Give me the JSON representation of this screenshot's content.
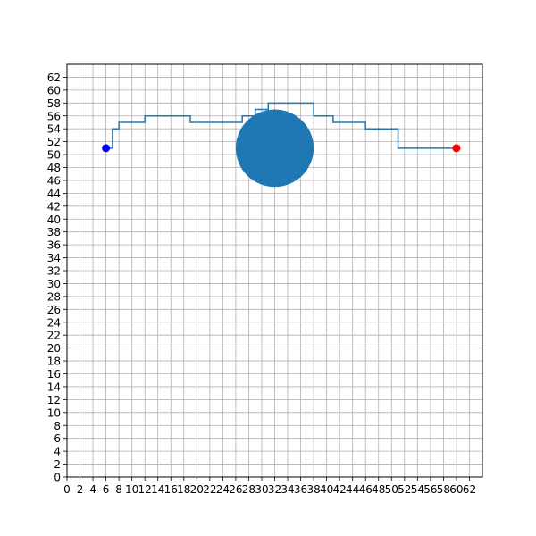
{
  "chart_data": {
    "type": "line",
    "title": "",
    "xlabel": "",
    "ylabel": "",
    "xlim": [
      0,
      64
    ],
    "ylim": [
      0,
      64
    ],
    "grid": true,
    "x_ticks": [
      0,
      2,
      4,
      6,
      8,
      10,
      12,
      14,
      16,
      18,
      20,
      22,
      24,
      26,
      28,
      30,
      32,
      34,
      36,
      38,
      40,
      42,
      44,
      46,
      48,
      50,
      52,
      54,
      56,
      58,
      60,
      62
    ],
    "y_ticks": [
      0,
      2,
      4,
      6,
      8,
      10,
      12,
      14,
      16,
      18,
      20,
      22,
      24,
      26,
      28,
      30,
      32,
      34,
      36,
      38,
      40,
      42,
      44,
      46,
      48,
      50,
      52,
      54,
      56,
      58,
      60,
      62
    ],
    "series": [
      {
        "type": "step-path",
        "color": "#1f77b4",
        "x": [
          6,
          7,
          7,
          8,
          8,
          12,
          12,
          19,
          19,
          27,
          27,
          29,
          29,
          31,
          31,
          38,
          38,
          41,
          41,
          46,
          46,
          51,
          51,
          60
        ],
        "y": [
          51,
          51,
          54,
          54,
          55,
          55,
          56,
          56,
          55,
          55,
          56,
          56,
          57,
          57,
          58,
          58,
          56,
          56,
          55,
          55,
          54,
          54,
          51,
          51
        ]
      }
    ],
    "obstacles": [
      {
        "shape": "circle",
        "center": [
          32,
          51
        ],
        "radius": 6,
        "color": "#1f77b4"
      }
    ],
    "markers": [
      {
        "role": "start",
        "x": 6,
        "y": 51,
        "color": "#0000ff"
      },
      {
        "role": "goal",
        "x": 60,
        "y": 51,
        "color": "#ff0000"
      }
    ]
  }
}
